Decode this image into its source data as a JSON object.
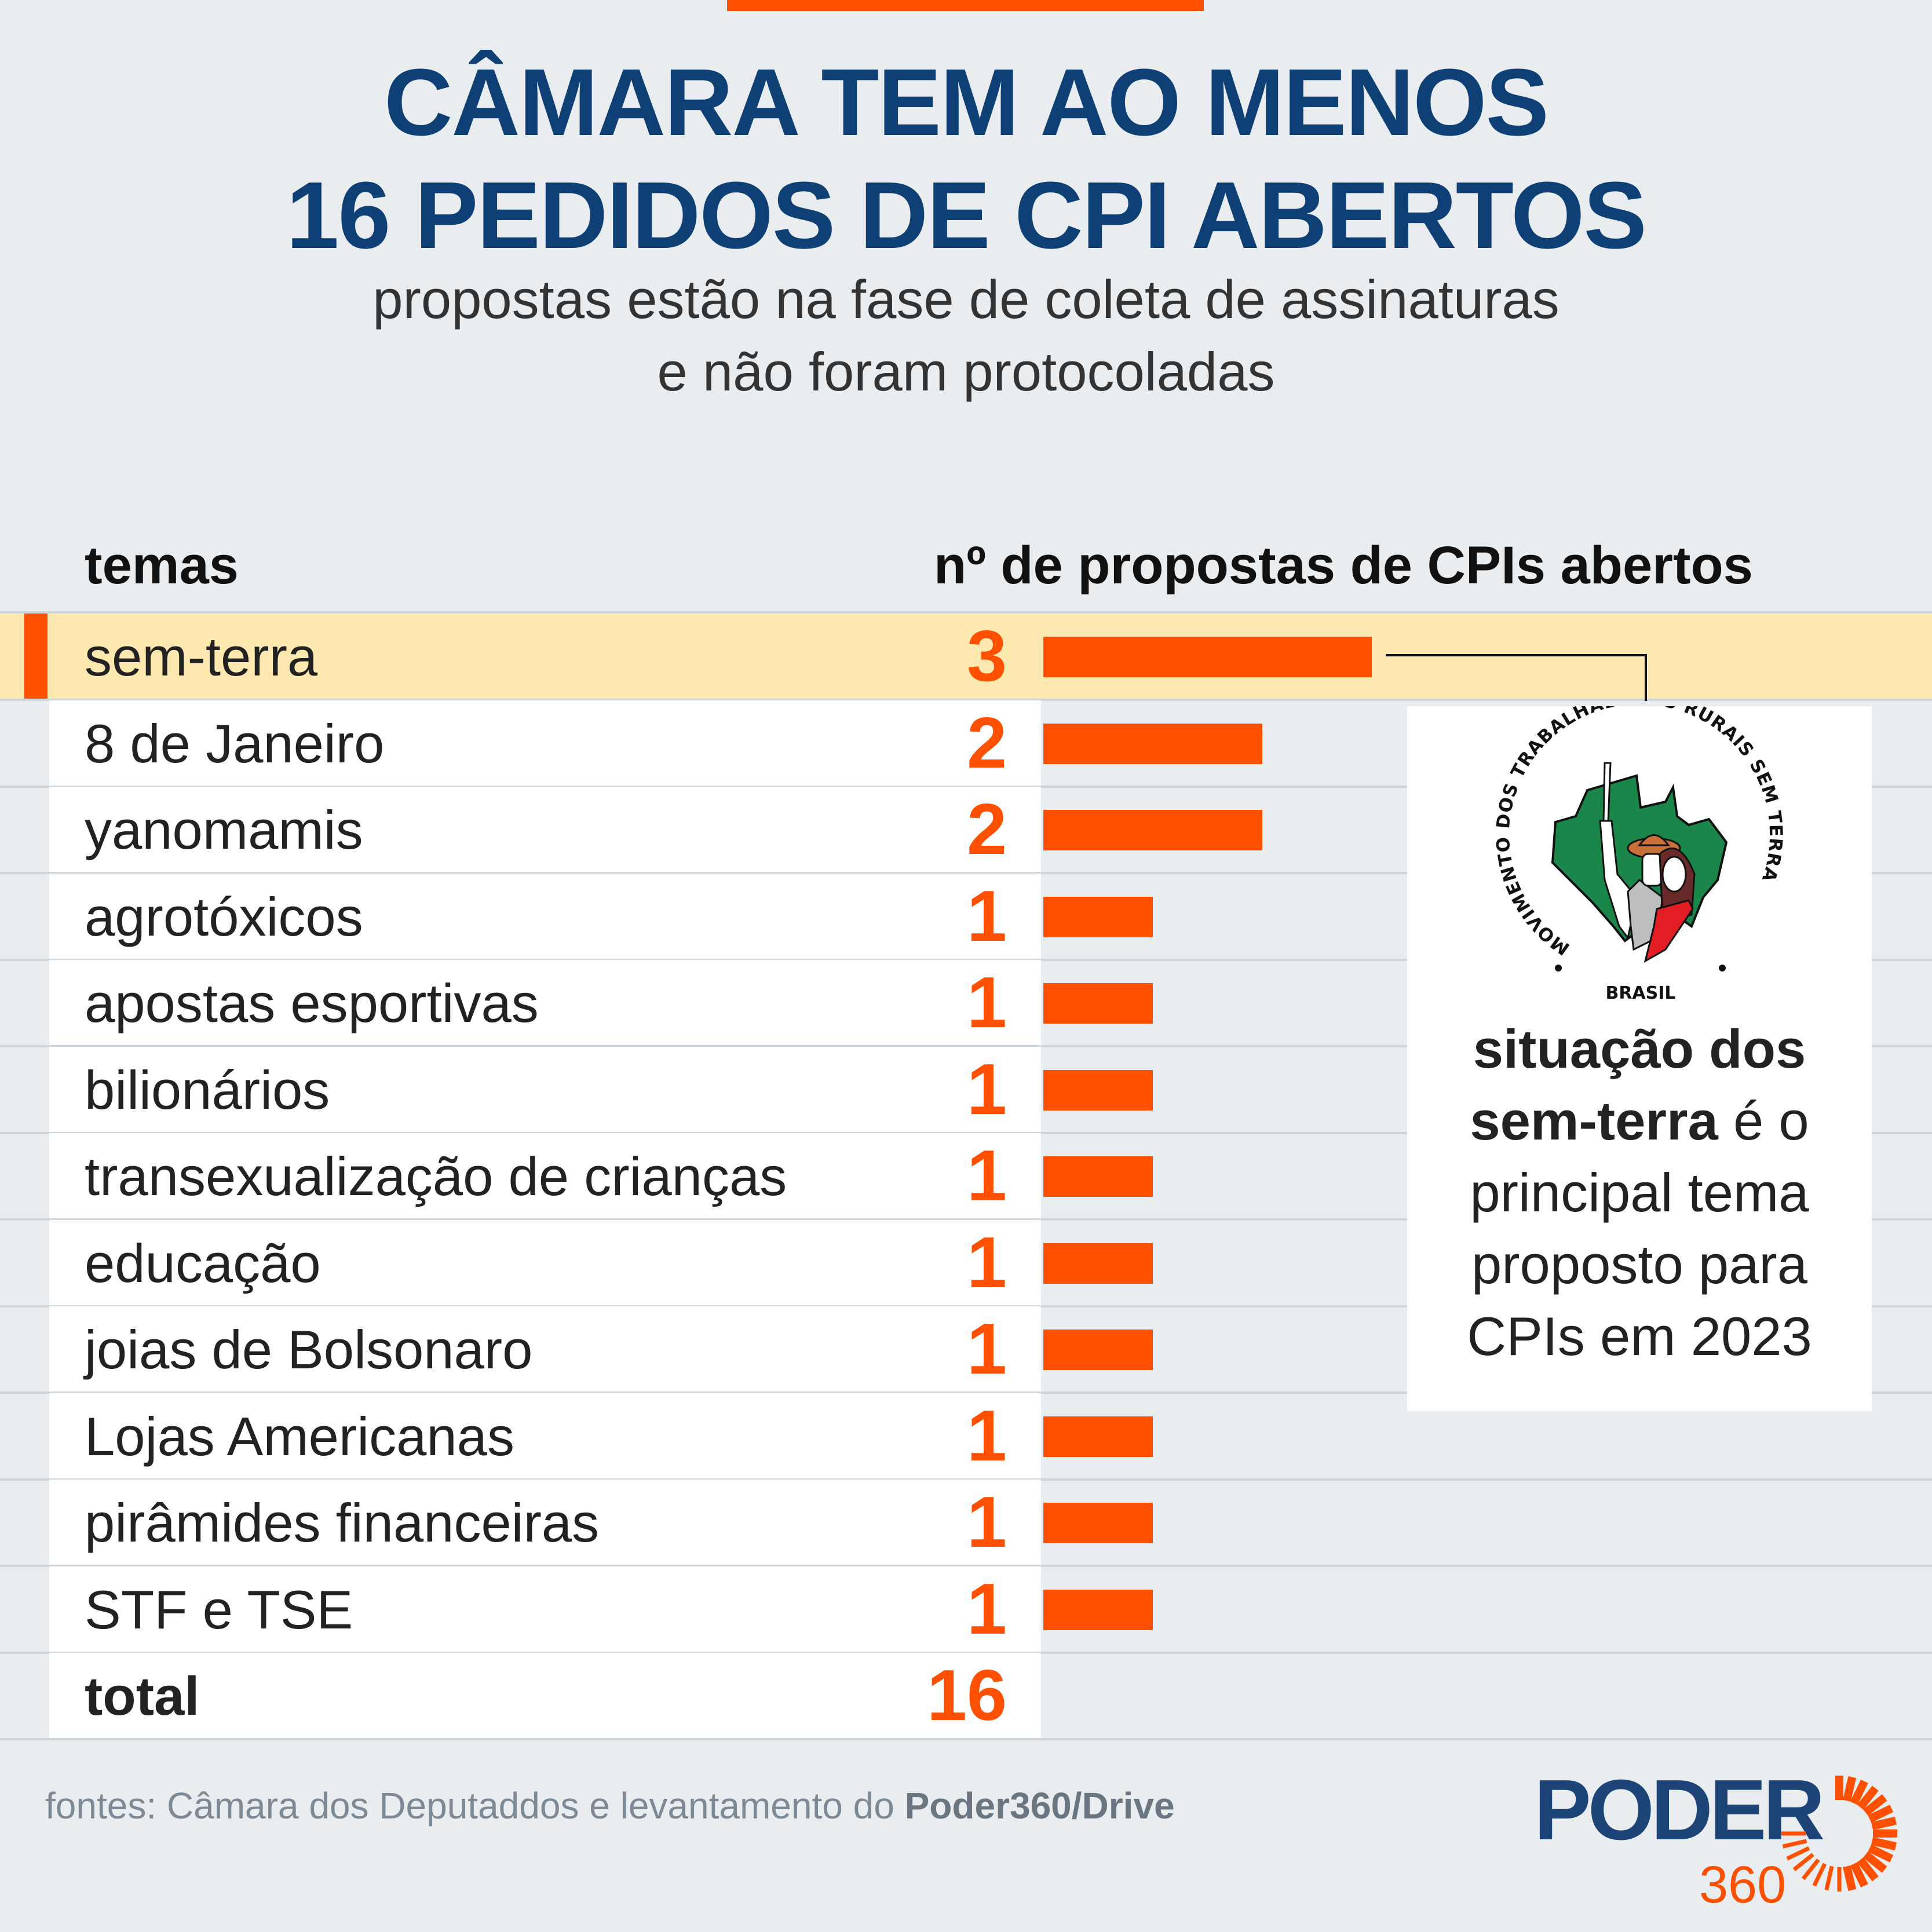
{
  "header": {
    "title_line1": "CÂMARA TEM AO MENOS",
    "title_line2": "16 PEDIDOS DE CPI ABERTOS",
    "subtitle_line1": "propostas estão na fase de coleta de assinaturas",
    "subtitle_line2": "e não foram protocoladas"
  },
  "table": {
    "col_theme": "temas",
    "col_count": "nº de propostas de CPIs abertos",
    "total_label": "total",
    "total_value": "16"
  },
  "chart_data": {
    "type": "bar",
    "orientation": "horizontal",
    "categories": [
      "sem-terra",
      "8 de Janeiro",
      "yanomamis",
      "agrotóxicos",
      "apostas esportivas",
      "bilionários",
      "transexualização de crianças",
      "educação",
      "joias de Bolsonaro",
      "Lojas Americanas",
      "pirâmides financeiras",
      "STF e TSE"
    ],
    "values": [
      3,
      2,
      2,
      1,
      1,
      1,
      1,
      1,
      1,
      1,
      1,
      1
    ],
    "highlighted": "sem-terra",
    "xlim": [
      0,
      3
    ],
    "grid": false,
    "bar_color": "#fe5000",
    "highlight_color": "#fde9b0"
  },
  "callout": {
    "line1_bold": "situação dos",
    "line2_bold": "sem-terra",
    "line2_rest": " é o",
    "line3": "principal tema",
    "line4": "proposto para",
    "line5": "CPIs em 2023",
    "logo_text_ring": "MOVIMENTO DOS TRABALHADORES RURAIS SEM TERRA",
    "logo_text_bottom": "BRASIL"
  },
  "footer": {
    "source_prefix": "fontes: Câmara dos Deputaddos e levantamento do ",
    "source_bold": "Poder360/Drive"
  },
  "brand": {
    "name": "PODER",
    "number": "360",
    "navy": "#1c4477",
    "orange": "#fe5000"
  }
}
